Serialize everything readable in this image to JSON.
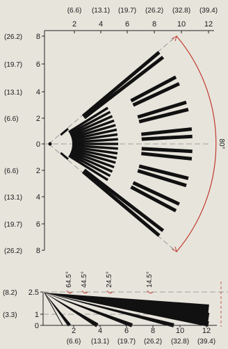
{
  "top_axis_paren": [
    "(6.6)",
    "(13.1)",
    "(19.7)",
    "(26.2)",
    "(32.8)",
    "(39.4)"
  ],
  "top_axis_ticks": [
    "2",
    "4",
    "6",
    "8",
    "10",
    "12"
  ],
  "left_axis": [
    {
      "paren": "(26.2)",
      "tick": "8"
    },
    {
      "paren": "(19.7)",
      "tick": "6"
    },
    {
      "paren": "(13.1)",
      "tick": "4"
    },
    {
      "paren": "(6.6)",
      "tick": "2"
    },
    {
      "paren": "",
      "tick": "0"
    },
    {
      "paren": "(6.6)",
      "tick": "2"
    },
    {
      "paren": "(13.1)",
      "tick": "4"
    },
    {
      "paren": "(19.7)",
      "tick": "6"
    },
    {
      "paren": "(26.2)",
      "tick": "8"
    }
  ],
  "coverage_angle": "80°",
  "side_angles": [
    "64.5°",
    "44.5°",
    "24.5°",
    "14.5°"
  ],
  "side_left_axis": [
    {
      "paren": "(8.2)",
      "tick": "2.5"
    },
    {
      "paren": "(3.3)",
      "tick": "1"
    },
    {
      "paren": "",
      "tick": "0"
    }
  ],
  "bottom_axis_ticks": [
    "2",
    "4",
    "6",
    "8",
    "10",
    "12"
  ],
  "bottom_axis_paren": [
    "(6.6)",
    "(13.1)",
    "(19.7)",
    "(26.2)",
    "(32.8)",
    "(39.4)"
  ],
  "colors": {
    "background": "#e7e4dc",
    "ink": "#111111",
    "arc": "#c0392b",
    "guide": "#888888"
  }
}
